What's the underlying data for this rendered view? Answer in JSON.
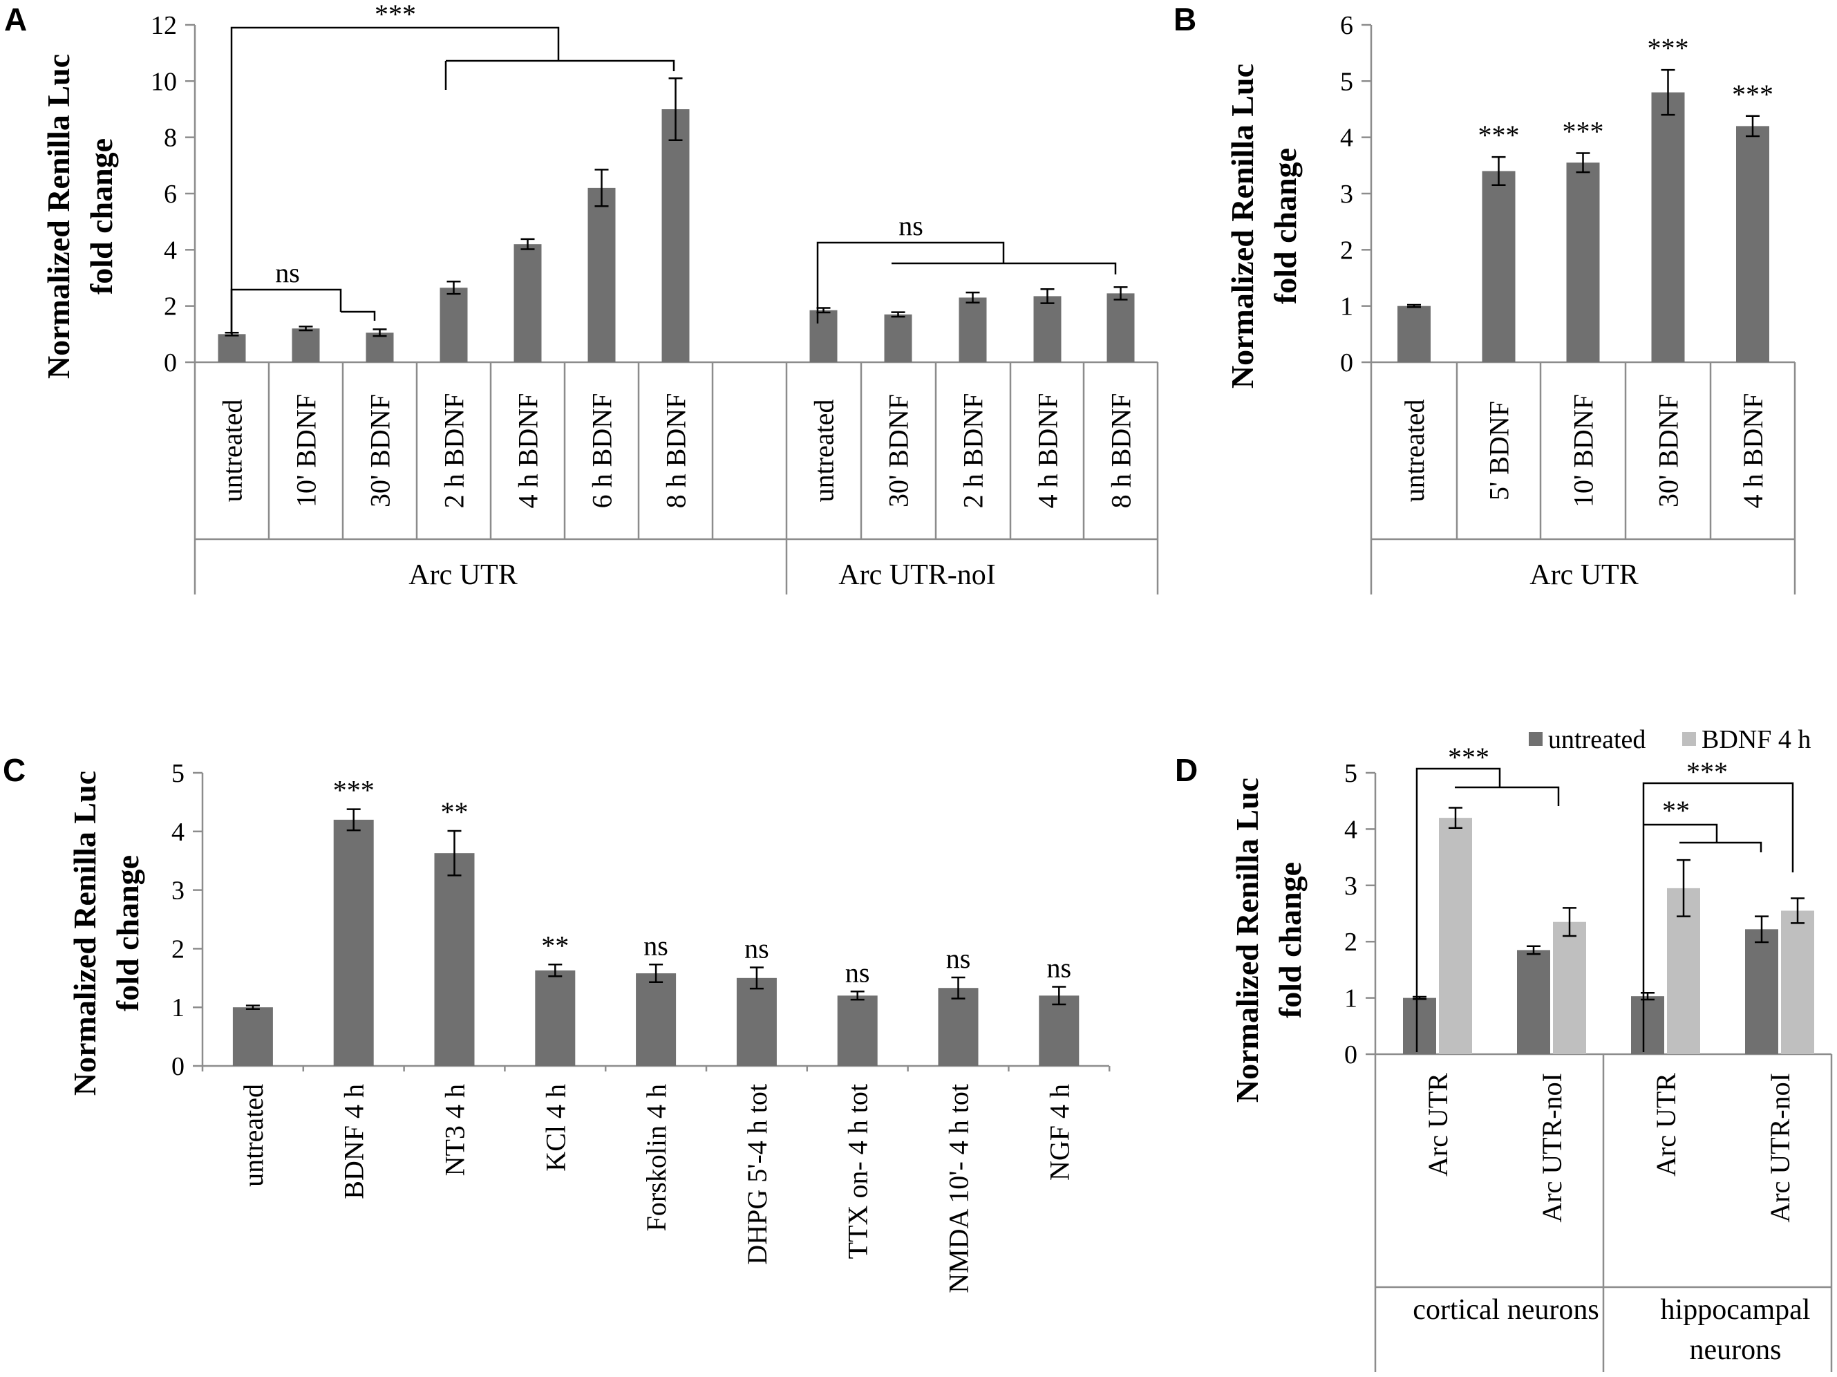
{
  "figure": {
    "colors": {
      "dark_bar": "#707070",
      "light_bar": "#bfbfbf",
      "axis": "#8c8c8c",
      "line": "#000000"
    }
  },
  "chart_data": [
    {
      "panel": "A",
      "type": "bar",
      "ylabel": "Normalized Renilla Luc fold change",
      "ylabel_lines": [
        "Normalized Renilla Luc",
        "fold change"
      ],
      "ylim": [
        0,
        12
      ],
      "yticks": [
        0,
        2,
        4,
        6,
        8,
        10,
        12
      ],
      "groups": [
        {
          "name": "Arc UTR",
          "categories": [
            "untreated",
            "10' BDNF",
            "30' BDNF",
            "2 h BDNF",
            "4 h BDNF",
            "6 h BDNF",
            "8 h BDNF"
          ],
          "values": [
            1.0,
            1.2,
            1.05,
            2.65,
            4.2,
            6.2,
            9.0
          ],
          "errors": [
            0.05,
            0.07,
            0.12,
            0.22,
            0.18,
            0.65,
            1.1
          ]
        },
        {
          "name": "Arc UTR-noI",
          "categories": [
            "untreated",
            "30' BDNF",
            "2 h BDNF",
            "4 h BDNF",
            "8 h BDNF"
          ],
          "values": [
            1.85,
            1.7,
            2.3,
            2.35,
            2.45
          ],
          "errors": [
            0.08,
            0.08,
            0.18,
            0.25,
            0.22
          ]
        }
      ],
      "annotations": [
        "***",
        "ns",
        "ns"
      ]
    },
    {
      "panel": "B",
      "type": "bar",
      "ylabel": "Normalized Renilla Luc fold change",
      "ylabel_lines": [
        "Normalized Renilla Luc",
        "fold change"
      ],
      "ylim": [
        0,
        6
      ],
      "yticks": [
        0,
        1,
        2,
        3,
        4,
        5,
        6
      ],
      "groups": [
        {
          "name": "Arc UTR",
          "categories": [
            "untreated",
            "5' BDNF",
            "10' BDNF",
            "30' BDNF",
            "4 h BDNF"
          ],
          "values": [
            1.0,
            3.4,
            3.55,
            4.8,
            4.2
          ],
          "errors": [
            0.02,
            0.25,
            0.17,
            0.4,
            0.18
          ],
          "significance": [
            "",
            "***",
            "***",
            "***",
            "***"
          ]
        }
      ]
    },
    {
      "panel": "C",
      "type": "bar",
      "ylabel": "Normalized Renilla Luc fold change",
      "ylabel_lines": [
        "Normalized Renilla Luc",
        "fold change"
      ],
      "ylim": [
        0,
        5
      ],
      "yticks": [
        0,
        1,
        2,
        3,
        4,
        5
      ],
      "categories": [
        "untreated",
        "BDNF 4 h",
        "NT3 4 h",
        "KCl 4 h",
        "Forskolin 4 h",
        "DHPG 5'-4 h tot",
        "TTX on- 4 h  tot",
        "NMDA 10'- 4 h tot",
        "NGF 4 h"
      ],
      "values": [
        1.0,
        4.2,
        3.63,
        1.63,
        1.58,
        1.5,
        1.2,
        1.33,
        1.2
      ],
      "errors": [
        0.03,
        0.18,
        0.38,
        0.1,
        0.15,
        0.18,
        0.07,
        0.18,
        0.15
      ],
      "significance": [
        "",
        "***",
        "**",
        "**",
        "ns",
        "ns",
        "ns",
        "ns",
        "ns"
      ]
    },
    {
      "panel": "D",
      "type": "bar",
      "ylabel": "Normalized Renilla Luc fold change",
      "ylabel_lines": [
        "Normalized Renilla Luc",
        "fold change"
      ],
      "ylim": [
        0,
        5
      ],
      "yticks": [
        0,
        1,
        2,
        3,
        4,
        5
      ],
      "legend": [
        "untreated",
        "BDNF 4 h"
      ],
      "legend_position": "top-right",
      "groups": [
        {
          "name": "cortical neurons",
          "name_lines": [
            "cortical neurons"
          ],
          "categories": [
            "Arc UTR",
            "Arc UTR-noI"
          ],
          "series": [
            {
              "name": "untreated",
              "values": [
                1.0,
                1.85
              ],
              "errors": [
                0.02,
                0.07
              ]
            },
            {
              "name": "BDNF 4 h",
              "values": [
                4.2,
                2.35
              ],
              "errors": [
                0.18,
                0.25
              ]
            }
          ]
        },
        {
          "name": "hippocampal neurons",
          "name_lines": [
            "hippocampal",
            "neurons"
          ],
          "categories": [
            "Arc UTR",
            "Arc UTR-noI"
          ],
          "series": [
            {
              "name": "untreated",
              "values": [
                1.03,
                2.22
              ],
              "errors": [
                0.06,
                0.23
              ]
            },
            {
              "name": "BDNF 4 h",
              "values": [
                2.95,
                2.55
              ],
              "errors": [
                0.5,
                0.22
              ]
            }
          ]
        }
      ],
      "annotations": [
        "***",
        "**",
        "***"
      ]
    }
  ]
}
